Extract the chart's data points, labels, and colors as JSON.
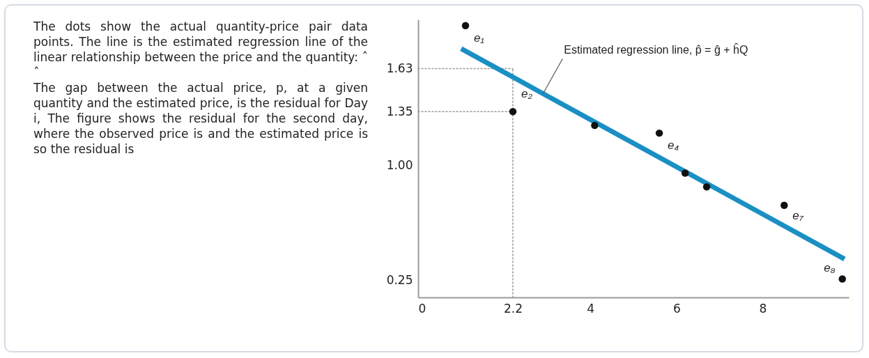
{
  "chart_data": {
    "type": "scatter",
    "annotations": [
      "The dots show the actual quantity-price pair data points. The line is the estimated regression line of the linear relationship between the price and the quantity: ˆ ˆ",
      "The gap between the actual price, p, at a given quantity and the estimated price, is the residual for Day i, The figure shows the residual for the second day, where the observed price is and the estimated price is so the residual is",
      {
        "text": "Estimated regression line, p̂ = ĝ + ĥQ",
        "x": 2.9,
        "y": 1.467
      },
      {
        "text": "e₁",
        "x": 1.1,
        "y": 1.91
      },
      {
        "text": "e₂",
        "x": 2.2,
        "y": 1.35
      },
      {
        "text": "e₄",
        "x": 5.6,
        "y": 1.21
      },
      {
        "text": "e₇",
        "x": 8.5,
        "y": 0.74
      },
      {
        "text": "e₈",
        "x": 9.85,
        "y": 0.26
      }
    ],
    "series": [
      {
        "color": "#111111",
        "x": [
          1.1,
          2.2,
          4.1,
          5.6,
          6.2,
          6.7,
          8.5,
          9.85
        ],
        "values": [
          1.91,
          1.35,
          1.26,
          1.21,
          0.95,
          0.86,
          0.74,
          0.26
        ]
      },
      {
        "type": "line",
        "marker": "none",
        "color": "#1a8fc4",
        "x": [
          1.0,
          9.9
        ],
        "values": [
          1.76,
          0.39
        ]
      }
    ],
    "xlim": [
      0,
      10
    ],
    "ylim": [
      0.14,
      1.95
    ],
    "xticks": [
      0,
      2.2,
      4,
      6,
      8
    ],
    "yticks": [
      0.25,
      {
        "value": 1,
        "label": "1.00"
      },
      1.35,
      1.63
    ],
    "ref_lines": [
      {
        "axis": "y",
        "value": 1.63,
        "line_style": "dotted",
        "color": "#999999"
      },
      {
        "axis": "y",
        "value": 1.35,
        "line_style": "dotted",
        "color": "#999999"
      },
      {
        "axis": "x",
        "value": 2.2,
        "line_style": "dotted",
        "color": "#999999"
      }
    ],
    "grid": false,
    "marker": "circle"
  }
}
